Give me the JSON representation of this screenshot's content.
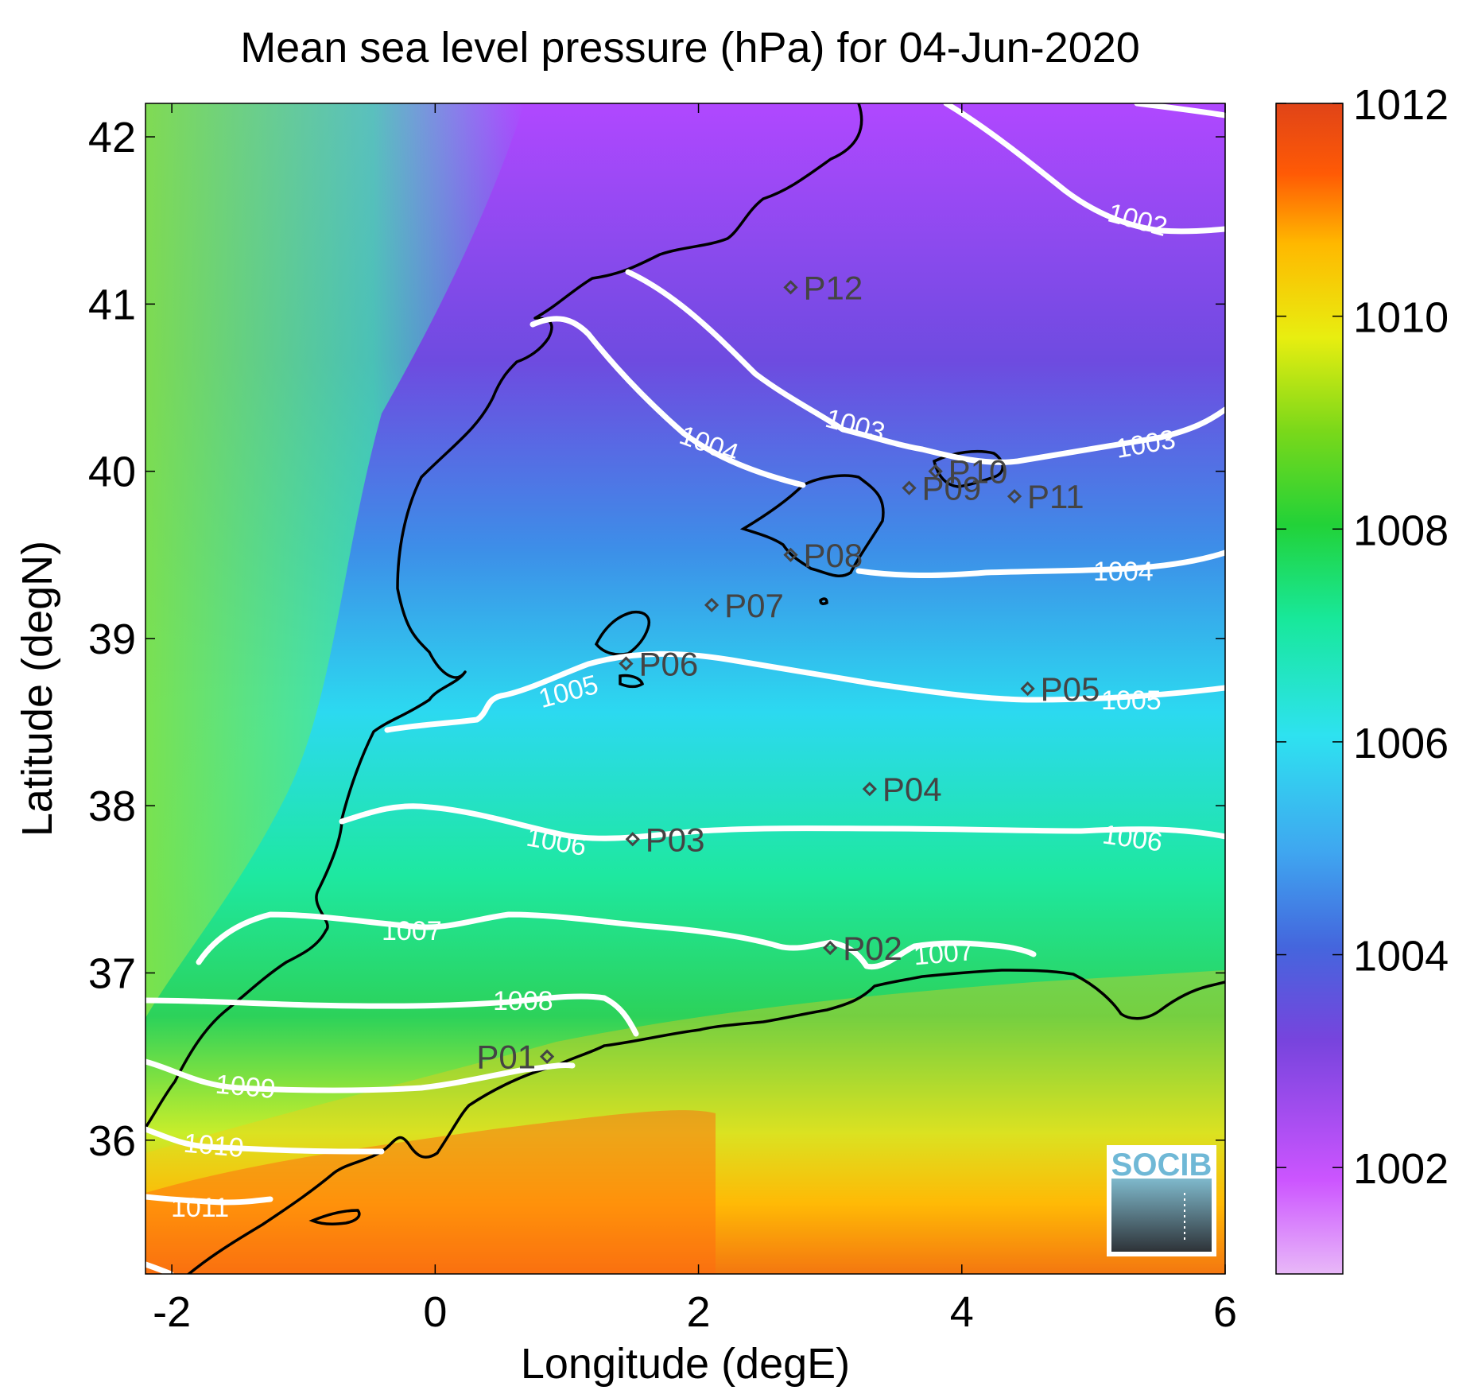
{
  "title": "Mean sea level pressure (hPa) for 04-Jun-2020",
  "xlabel": "Longitude (degE)",
  "ylabel": "Latitude (degN)",
  "x_ticks": [
    "-2",
    "0",
    "2",
    "4",
    "6"
  ],
  "y_ticks": [
    "36",
    "37",
    "38",
    "39",
    "40",
    "41",
    "42"
  ],
  "colorbar_ticks": [
    "1002",
    "1004",
    "1006",
    "1008",
    "1010",
    "1012"
  ],
  "logo_text": "SOCIB",
  "chart_data": {
    "type": "heatmap",
    "title": "Mean sea level pressure (hPa) for 04-Jun-2020",
    "xlabel": "Longitude (degE)",
    "ylabel": "Latitude (degN)",
    "xlim": [
      -2.2,
      6
    ],
    "ylim": [
      35.2,
      42.2
    ],
    "colorbar": {
      "range": [
        1001,
        1012
      ],
      "ticks": [
        1002,
        1004,
        1006,
        1008,
        1010,
        1012
      ],
      "colormap": "violet-blue-cyan-green-yellow-red"
    },
    "contour_levels": [
      {
        "level": 1002,
        "label": "1002"
      },
      {
        "level": 1003,
        "label": "1003"
      },
      {
        "level": 1004,
        "label": "1004"
      },
      {
        "level": 1005,
        "label": "1005"
      },
      {
        "level": 1006,
        "label": "1006"
      },
      {
        "level": 1007,
        "label": "1007"
      },
      {
        "level": 1008,
        "label": "1008"
      },
      {
        "level": 1009,
        "label": "1009"
      },
      {
        "level": 1010,
        "label": "1010"
      },
      {
        "level": 1011,
        "label": "1011"
      }
    ],
    "stations": [
      {
        "name": "P01",
        "lon": 0.85,
        "lat": 36.5
      },
      {
        "name": "P02",
        "lon": 3.0,
        "lat": 37.15
      },
      {
        "name": "P03",
        "lon": 1.5,
        "lat": 37.8
      },
      {
        "name": "P04",
        "lon": 3.3,
        "lat": 38.1
      },
      {
        "name": "P05",
        "lon": 4.5,
        "lat": 38.7
      },
      {
        "name": "P06",
        "lon": 1.45,
        "lat": 38.85
      },
      {
        "name": "P07",
        "lon": 2.1,
        "lat": 39.2
      },
      {
        "name": "P08",
        "lon": 2.7,
        "lat": 39.5
      },
      {
        "name": "P09",
        "lon": 3.6,
        "lat": 39.9
      },
      {
        "name": "P10",
        "lon": 3.8,
        "lat": 40.0
      },
      {
        "name": "P11",
        "lon": 4.4,
        "lat": 39.85
      },
      {
        "name": "P12",
        "lon": 2.7,
        "lat": 41.1
      }
    ]
  }
}
